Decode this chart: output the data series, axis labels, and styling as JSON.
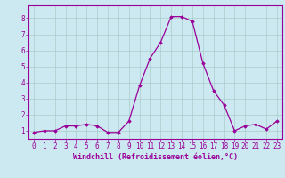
{
  "x": [
    0,
    1,
    2,
    3,
    4,
    5,
    6,
    7,
    8,
    9,
    10,
    11,
    12,
    13,
    14,
    15,
    16,
    17,
    18,
    19,
    20,
    21,
    22,
    23
  ],
  "y": [
    0.9,
    1.0,
    1.0,
    1.3,
    1.3,
    1.4,
    1.3,
    0.9,
    0.9,
    1.6,
    3.8,
    5.5,
    6.5,
    8.1,
    8.1,
    7.8,
    5.2,
    3.5,
    2.6,
    1.0,
    1.3,
    1.4,
    1.1,
    1.6
  ],
  "xlabel": "Windchill (Refroidissement éolien,°C)",
  "line_color": "#990099",
  "marker": "D",
  "marker_size": 1.8,
  "line_width": 0.9,
  "bg_color": "#cce8f0",
  "grid_color": "#aacccc",
  "xlim": [
    -0.5,
    23.5
  ],
  "ylim": [
    0.5,
    8.8
  ],
  "xticks": [
    0,
    1,
    2,
    3,
    4,
    5,
    6,
    7,
    8,
    9,
    10,
    11,
    12,
    13,
    14,
    15,
    16,
    17,
    18,
    19,
    20,
    21,
    22,
    23
  ],
  "yticks": [
    1,
    2,
    3,
    4,
    5,
    6,
    7,
    8
  ],
  "xtick_labels": [
    "0",
    "1",
    "2",
    "3",
    "4",
    "5",
    "6",
    "7",
    "8",
    "9",
    "10",
    "11",
    "12",
    "13",
    "14",
    "15",
    "16",
    "17",
    "18",
    "19",
    "20",
    "21",
    "22",
    "23"
  ],
  "ytick_labels": [
    "1",
    "2",
    "3",
    "4",
    "5",
    "6",
    "7",
    "8"
  ],
  "tick_fontsize": 5.5,
  "xlabel_fontsize": 6.0
}
